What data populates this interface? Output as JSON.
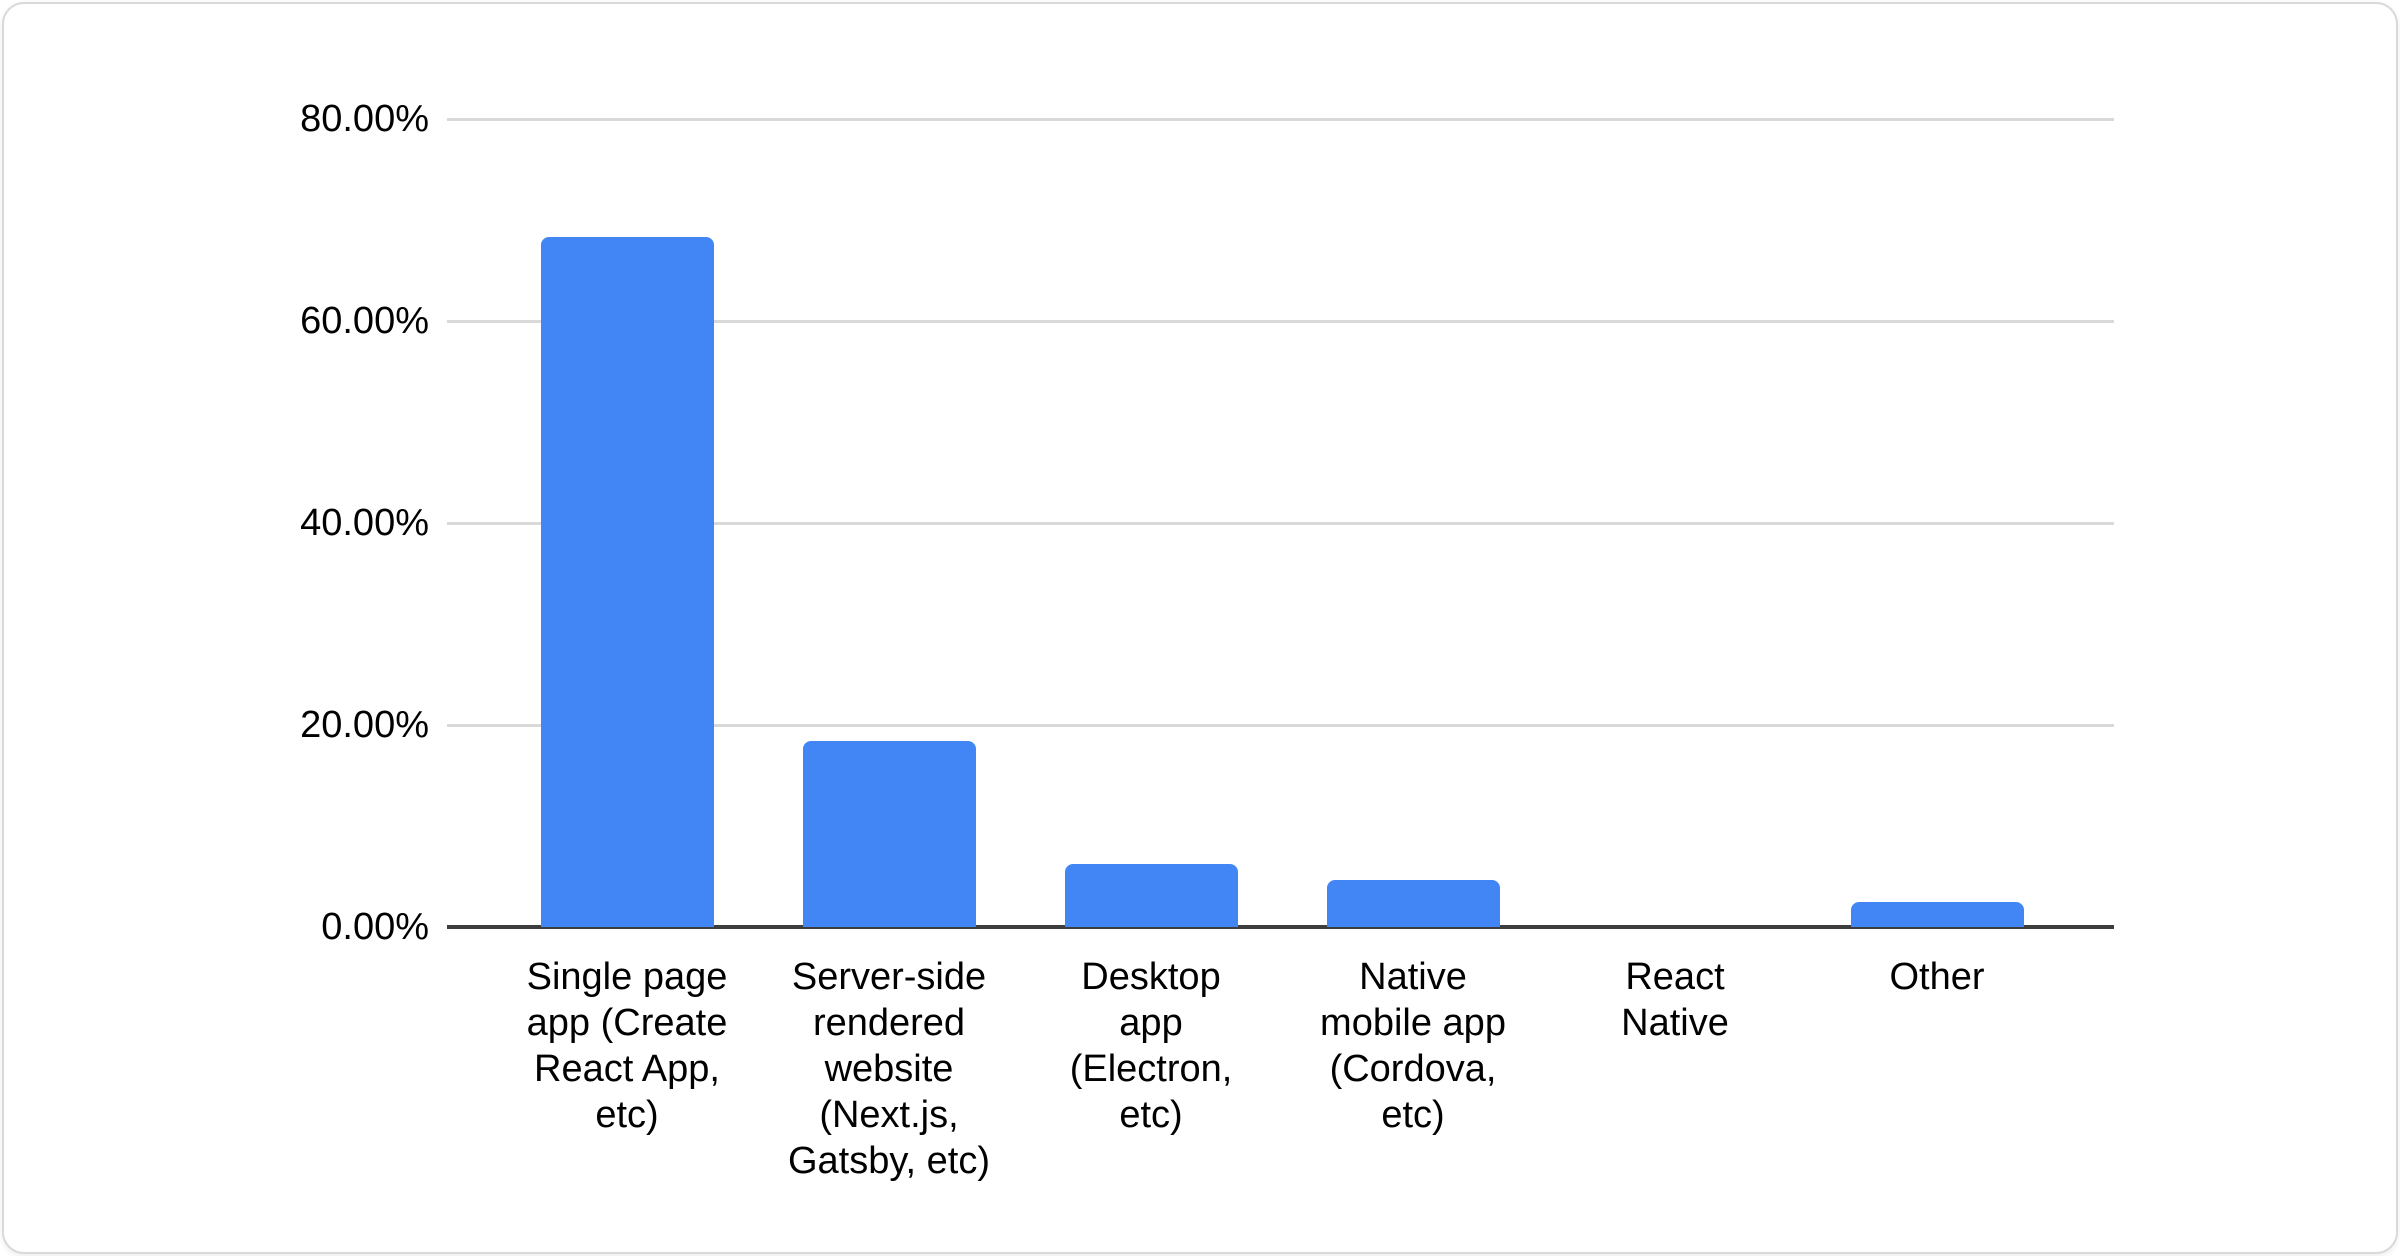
{
  "chart_data": {
    "type": "bar",
    "title": "",
    "xlabel": "",
    "ylabel": "",
    "unit": "%",
    "categories": [
      "Single page app (Create React App, etc)",
      "Server-side rendered website (Next.js, Gatsby, etc)",
      "Desktop app (Electron, etc)",
      "Native mobile app (Cordova, etc)",
      "React Native",
      "Other"
    ],
    "categories_display": [
      "Single page\napp (Create\nReact App,\netc)",
      "Server-side\nrendered\nwebsite\n(Next.js,\nGatsby, etc)",
      "Desktop\napp\n(Electron,\netc)",
      "Native\nmobile app\n(Cordova,\netc)",
      "React\nNative",
      "Other"
    ],
    "values": [
      68.3,
      18.4,
      6.2,
      4.7,
      0,
      2.5
    ],
    "ylim": [
      0,
      80
    ],
    "ytick_values": [
      0,
      20,
      40,
      60,
      80
    ],
    "ytick_labels": [
      "0.00%",
      "20.00%",
      "40.00%",
      "60.00%",
      "80.00%"
    ],
    "grid": true,
    "legend": "none",
    "colors": {
      "bar": "#4285f4",
      "gridline": "#d9d9d9",
      "axis_line": "#3d3d3d",
      "text": "#000000",
      "card_background": "#ffffff",
      "card_border": "#d7d9db"
    }
  }
}
